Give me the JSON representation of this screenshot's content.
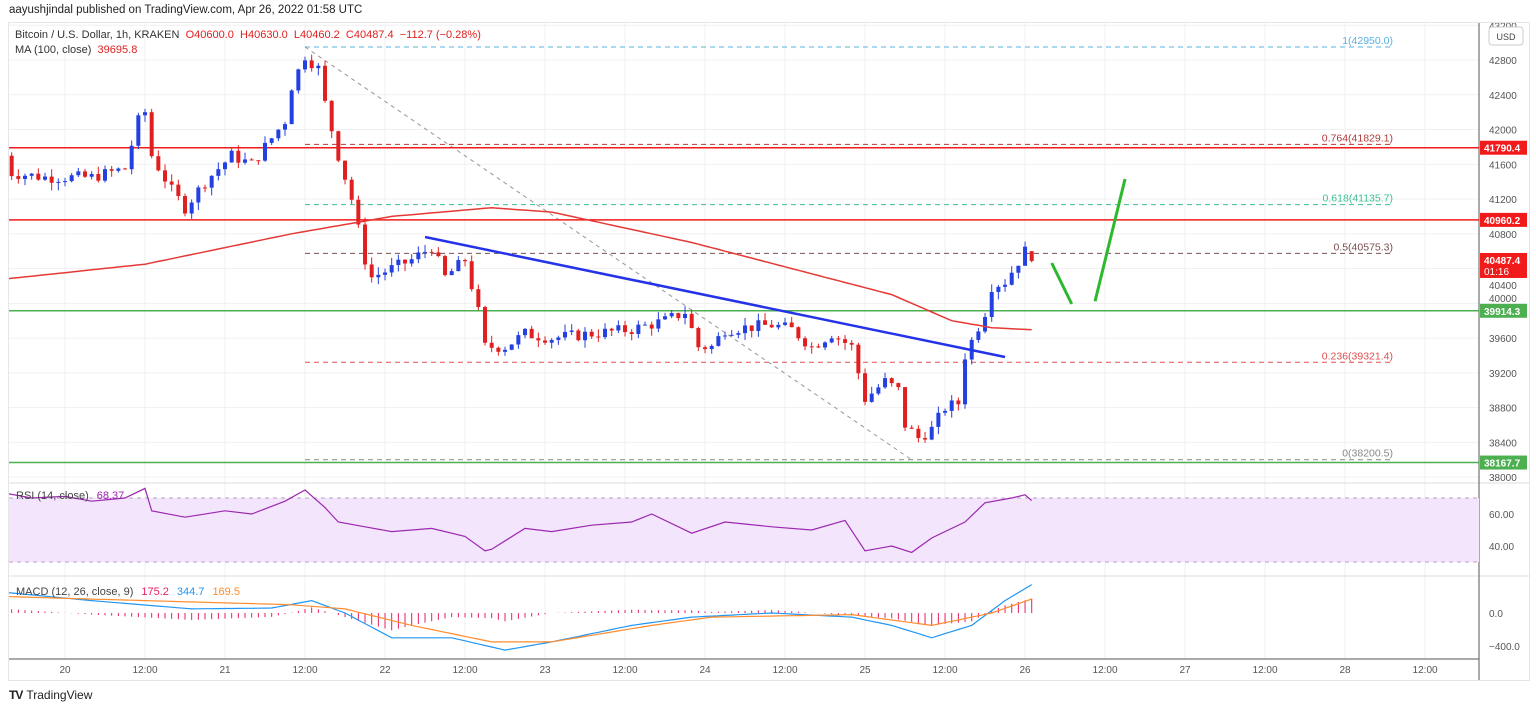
{
  "published": "aayushjindal published on TradingView.com, Apr 26, 2022 01:58 UTC",
  "legend": {
    "symbol": "Bitcoin / U.S. Dollar, 1h, KRAKEN",
    "o": "O40600.0",
    "h": "H40630.0",
    "l": "L40460.2",
    "c": "C40487.4",
    "chg": "−112.7 (−0.28%)",
    "ma": "MA (100, close)",
    "ma_val": "39695.8"
  },
  "currency": "USD",
  "logo": "TradingView",
  "colors": {
    "up": "#2340e0",
    "down": "#e02020",
    "ma": "#e53935",
    "trend": "#2433e8",
    "arrow": "#2eb82e",
    "rsi": "#9c27b0",
    "macd": "#2196f3",
    "signal": "#ff8c2e",
    "hist": "#e91e63"
  },
  "chart_data": {
    "type": "candlestick",
    "x_unit": "hours since Apr 20 00:00",
    "close_keypoints": [
      [
        -9,
        41700
      ],
      [
        -8,
        41500
      ],
      [
        -3,
        41450
      ],
      [
        4,
        41450
      ],
      [
        9,
        41550
      ],
      [
        11,
        42100
      ],
      [
        12,
        42200
      ],
      [
        13,
        41700
      ],
      [
        16,
        41300
      ],
      [
        18,
        41100
      ],
      [
        21,
        41400
      ],
      [
        25,
        41700
      ],
      [
        28,
        41600
      ],
      [
        30,
        41800
      ],
      [
        33,
        42100
      ],
      [
        34,
        42500
      ],
      [
        36,
        42850
      ],
      [
        38,
        42700
      ],
      [
        39,
        42300
      ],
      [
        41,
        41700
      ],
      [
        43,
        41200
      ],
      [
        45,
        40500
      ],
      [
        46,
        40300
      ],
      [
        49,
        40400
      ],
      [
        52,
        40500
      ],
      [
        55,
        40650
      ],
      [
        57,
        40300
      ],
      [
        60,
        40500
      ],
      [
        62,
        39900
      ],
      [
        63,
        39500
      ],
      [
        66,
        39500
      ],
      [
        69,
        39650
      ],
      [
        73,
        39600
      ],
      [
        79,
        39650
      ],
      [
        85,
        39700
      ],
      [
        90,
        39800
      ],
      [
        93,
        39900
      ],
      [
        95,
        39500
      ],
      [
        97,
        39500
      ],
      [
        99,
        39700
      ],
      [
        106,
        39750
      ],
      [
        109,
        39700
      ],
      [
        112,
        39500
      ],
      [
        115,
        39650
      ],
      [
        118,
        39500
      ],
      [
        120,
        38900
      ],
      [
        123,
        39100
      ],
      [
        125,
        39000
      ],
      [
        126,
        38600
      ],
      [
        128,
        38450
      ],
      [
        130,
        38550
      ],
      [
        132,
        38800
      ],
      [
        134,
        38850
      ],
      [
        135,
        39400
      ],
      [
        138,
        39900
      ],
      [
        139,
        40200
      ],
      [
        141,
        40250
      ],
      [
        144,
        40600
      ],
      [
        145,
        40487.4
      ]
    ],
    "ma100": [
      [
        -9,
        40280
      ],
      [
        12,
        40450
      ],
      [
        34,
        40800
      ],
      [
        49,
        41000
      ],
      [
        64,
        41100
      ],
      [
        73,
        41050
      ],
      [
        94,
        40700
      ],
      [
        109,
        40400
      ],
      [
        124,
        40100
      ],
      [
        133,
        39800
      ],
      [
        139,
        39720
      ],
      [
        145,
        39695.8
      ]
    ],
    "price_ticks": [
      43200,
      42800,
      42400,
      42000,
      41600,
      41200,
      40800,
      40400,
      40000,
      39600,
      39200,
      38800,
      38400,
      38000
    ],
    "time_ticks": [
      {
        "h": 0,
        "label": "20"
      },
      {
        "h": 12,
        "label": "12:00"
      },
      {
        "h": 24,
        "label": "21"
      },
      {
        "h": 36,
        "label": "12:00"
      },
      {
        "h": 48,
        "label": "22"
      },
      {
        "h": 60,
        "label": "12:00"
      },
      {
        "h": 72,
        "label": "23"
      },
      {
        "h": 84,
        "label": "12:00"
      },
      {
        "h": 96,
        "label": "24"
      },
      {
        "h": 108,
        "label": "12:00"
      },
      {
        "h": 120,
        "label": "25"
      },
      {
        "h": 132,
        "label": "12:00"
      },
      {
        "h": 144,
        "label": "26"
      },
      {
        "h": 156,
        "label": "12:00"
      },
      {
        "h": 168,
        "label": "27"
      },
      {
        "h": 180,
        "label": "12:00"
      },
      {
        "h": 192,
        "label": "28"
      },
      {
        "h": 204,
        "label": "12:00"
      }
    ],
    "hlines": [
      {
        "price": 41790.4,
        "label": "41790.4",
        "color": "#f21b1b"
      },
      {
        "price": 40960.2,
        "label": "40960.2",
        "color": "#f21b1b"
      },
      {
        "price": 39914.3,
        "label": "39914.3",
        "color": "#4caf50"
      },
      {
        "price": 38167.7,
        "label": "38167.7",
        "color": "#4caf50"
      }
    ],
    "last_price": {
      "label": "40487.4",
      "countdown": "01:16",
      "price": 40487.4
    },
    "fib": [
      {
        "price": 42950,
        "label": "1(42950.0)",
        "color": "#5ab0e0"
      },
      {
        "price": 41829.1,
        "label": "0.764(41829.1)",
        "color": "#b33a3a"
      },
      {
        "price": 41135.7,
        "label": "0.618(41135.7)",
        "color": "#3cbf8f"
      },
      {
        "price": 40575.3,
        "label": "0.5(40575.3)",
        "color": "#7a5050"
      },
      {
        "price": 39321.4,
        "label": "0.236(39321.4)",
        "color": "#e05050"
      },
      {
        "price": 38200.5,
        "label": "0(38200.5)",
        "color": "#888888"
      }
    ],
    "trendline": [
      [
        54,
        40763
      ],
      [
        141,
        39382
      ]
    ],
    "fib_diagonal": [
      [
        36,
        42950
      ],
      [
        127,
        38200
      ]
    ],
    "arrows": [
      [
        [
          148,
          40464
        ],
        [
          151,
          39992
        ]
      ],
      [
        [
          154.5,
          40024
        ],
        [
          159,
          41431
        ]
      ]
    ],
    "rsi": {
      "label": "RSI (14, close)",
      "value": "68.37",
      "ticks": [
        {
          "v": 60,
          "label": "60.00"
        },
        {
          "v": 40,
          "label": "40.00"
        }
      ],
      "band": [
        30,
        70
      ],
      "points": [
        [
          -9,
          73
        ],
        [
          -5,
          70
        ],
        [
          0,
          71
        ],
        [
          4,
          68
        ],
        [
          9,
          70
        ],
        [
          12,
          76
        ],
        [
          13,
          62
        ],
        [
          18,
          58
        ],
        [
          24,
          62
        ],
        [
          28,
          60
        ],
        [
          33,
          68
        ],
        [
          36,
          75
        ],
        [
          39,
          64
        ],
        [
          41,
          55
        ],
        [
          45,
          52
        ],
        [
          49,
          49
        ],
        [
          55,
          51
        ],
        [
          60,
          46
        ],
        [
          63,
          37
        ],
        [
          64,
          38
        ],
        [
          69,
          51
        ],
        [
          73,
          49
        ],
        [
          79,
          53
        ],
        [
          85,
          55
        ],
        [
          88,
          60
        ],
        [
          94,
          48
        ],
        [
          99,
          55
        ],
        [
          106,
          52
        ],
        [
          112,
          50
        ],
        [
          117,
          56
        ],
        [
          120,
          37
        ],
        [
          124,
          40
        ],
        [
          127,
          36
        ],
        [
          130,
          45
        ],
        [
          135,
          55
        ],
        [
          138,
          67
        ],
        [
          142,
          70
        ],
        [
          144,
          72
        ],
        [
          145,
          68.37
        ]
      ]
    },
    "macd": {
      "label": "MACD (12, 26, close, 9)",
      "hist": "175.2",
      "macd": "344.7",
      "signal": "169.5",
      "ticks": [
        {
          "v": 0,
          "label": "0.0"
        },
        {
          "v": -400,
          "label": "−400.0"
        }
      ],
      "macd_line": [
        [
          -9,
          250
        ],
        [
          4,
          150
        ],
        [
          19,
          50
        ],
        [
          31,
          60
        ],
        [
          37,
          150
        ],
        [
          42,
          0
        ],
        [
          49,
          -300
        ],
        [
          58,
          -300
        ],
        [
          66,
          -450
        ],
        [
          73,
          -350
        ],
        [
          85,
          -150
        ],
        [
          94,
          -50
        ],
        [
          106,
          0
        ],
        [
          118,
          -50
        ],
        [
          124,
          -150
        ],
        [
          130,
          -300
        ],
        [
          136,
          -150
        ],
        [
          141,
          150
        ],
        [
          145,
          344.7
        ]
      ],
      "signal_line": [
        [
          -9,
          200
        ],
        [
          12,
          150
        ],
        [
          34,
          100
        ],
        [
          42,
          50
        ],
        [
          52,
          -150
        ],
        [
          64,
          -350
        ],
        [
          73,
          -350
        ],
        [
          88,
          -150
        ],
        [
          97,
          -50
        ],
        [
          118,
          -20
        ],
        [
          130,
          -150
        ],
        [
          139,
          0
        ],
        [
          145,
          169.5
        ]
      ]
    }
  }
}
